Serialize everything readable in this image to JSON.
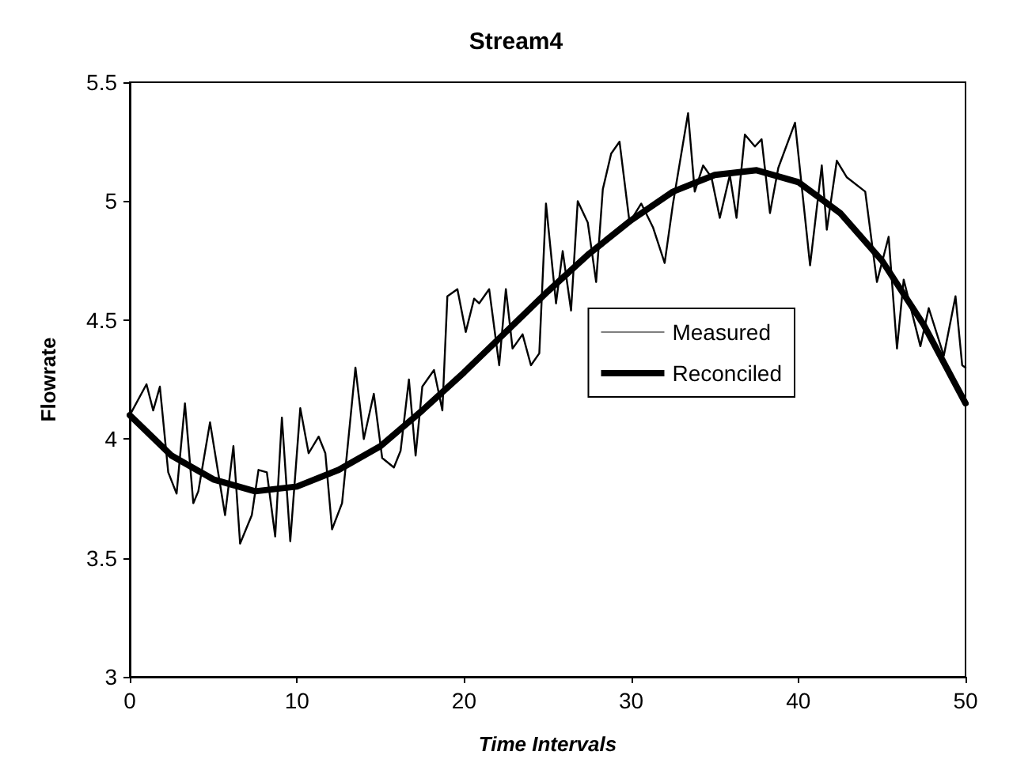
{
  "chart_data": {
    "type": "line",
    "title": "Stream4",
    "xlabel": "Time Intervals",
    "ylabel": "Flowrate",
    "xlim": [
      0,
      50
    ],
    "xticks": [
      0,
      10,
      20,
      30,
      40,
      50
    ],
    "ylim": [
      3,
      5.5
    ],
    "yticks": [
      3,
      3.5,
      4,
      4.5,
      5,
      5.5
    ],
    "grid": false,
    "legend": "right",
    "marker": "none",
    "series": [
      {
        "name": "Measured",
        "color": "#000000",
        "x": [
          0,
          1,
          1.4,
          1.8,
          2.3,
          2.8,
          3.3,
          3.8,
          4.1,
          4.8,
          5.7,
          6.2,
          6.6,
          7.3,
          7.7,
          8.2,
          8.7,
          9.1,
          9.6,
          10.2,
          10.7,
          11.3,
          11.7,
          12.1,
          12.7,
          13.5,
          14,
          14.6,
          15.1,
          15.8,
          16.2,
          16.7,
          17.1,
          17.5,
          18.2,
          18.7,
          19,
          19.6,
          20.1,
          20.6,
          20.9,
          21.5,
          22.1,
          22.5,
          22.9,
          23.5,
          24,
          24.5,
          24.9,
          25.5,
          25.9,
          26.4,
          26.8,
          27.4,
          27.9,
          28.3,
          28.8,
          29.3,
          29.9,
          30.6,
          31.3,
          32,
          32.5,
          33.4,
          33.8,
          34.3,
          34.8,
          35.3,
          35.9,
          36.3,
          36.8,
          37.4,
          37.8,
          38.3,
          38.8,
          39.8,
          40.7,
          41.4,
          41.7,
          42.3,
          42.9,
          44,
          44.7,
          45.4,
          45.9,
          46.3,
          46.8,
          47.3,
          47.8,
          48.7,
          49.4,
          49.8,
          50
        ],
        "values": [
          4.1,
          4.23,
          4.12,
          4.22,
          3.86,
          3.77,
          4.15,
          3.73,
          3.78,
          4.07,
          3.68,
          3.97,
          3.56,
          3.68,
          3.87,
          3.86,
          3.59,
          4.09,
          3.57,
          4.13,
          3.94,
          4.01,
          3.94,
          3.62,
          3.73,
          4.3,
          4,
          4.19,
          3.92,
          3.88,
          3.95,
          4.25,
          3.93,
          4.22,
          4.29,
          4.12,
          4.6,
          4.63,
          4.45,
          4.59,
          4.57,
          4.63,
          4.31,
          4.63,
          4.38,
          4.44,
          4.31,
          4.36,
          4.99,
          4.57,
          4.79,
          4.54,
          5,
          4.91,
          4.66,
          5.05,
          5.2,
          5.25,
          4.91,
          4.99,
          4.89,
          4.74,
          4.99,
          5.37,
          5.04,
          5.15,
          5.1,
          4.93,
          5.11,
          4.93,
          5.28,
          5.23,
          5.26,
          4.95,
          5.14,
          5.33,
          4.73,
          5.15,
          4.88,
          5.17,
          5.1,
          5.04,
          4.66,
          4.85,
          4.38,
          4.67,
          4.53,
          4.39,
          4.55,
          4.35,
          4.6,
          4.31,
          4.3
        ]
      },
      {
        "name": "Reconciled",
        "color": "#000000",
        "x": [
          0,
          2.5,
          5,
          7.5,
          10,
          12.5,
          15,
          17.5,
          20,
          22.5,
          25,
          27.5,
          30,
          32.5,
          35,
          37.5,
          40,
          42.5,
          45,
          47.5,
          50
        ],
        "values": [
          4.1,
          3.93,
          3.83,
          3.78,
          3.8,
          3.87,
          3.97,
          4.12,
          4.28,
          4.45,
          4.62,
          4.78,
          4.92,
          5.04,
          5.11,
          5.13,
          5.08,
          4.95,
          4.75,
          4.48,
          4.15
        ]
      }
    ]
  }
}
